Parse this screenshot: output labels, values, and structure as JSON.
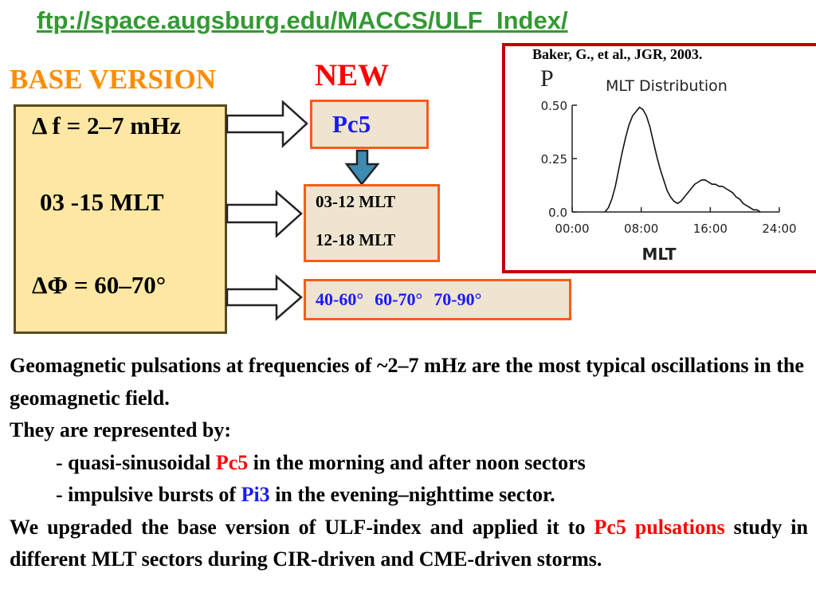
{
  "header": {
    "url": "ftp://space.augsburg.edu/MACCS/ULF_Index/",
    "base_title": "BASE VERSION",
    "new_title": "NEW"
  },
  "base_box": {
    "line1": "Δ f = 2–7 mHz",
    "line2": "03 -15 MLT",
    "line3": "ΔΦ = 60–70°"
  },
  "new_boxes": {
    "pc5": "Pc5",
    "mlt_line1": "03-12 MLT",
    "mlt_line2": "12-18 MLT",
    "lat1": "40-60°",
    "lat2": "60-70°",
    "lat3": "70-90°"
  },
  "figure": {
    "citation": "Baker, G., et al., JGR, 2003.",
    "panel_letter": "P",
    "title": "MLT Distribution",
    "xlabel": "MLT",
    "y_ticks": [
      "0.50",
      "0.25",
      "0.0"
    ],
    "x_ticks": [
      "00:00",
      "08:00",
      "16:00",
      "24:00"
    ]
  },
  "chart_data": {
    "type": "line",
    "title": "MLT Distribution",
    "xlabel": "MLT",
    "ylabel": "",
    "xlim": [
      0,
      24
    ],
    "ylim": [
      0,
      0.5
    ],
    "x_tick_labels": [
      "00:00",
      "08:00",
      "16:00",
      "24:00"
    ],
    "y_tick_labels": [
      "0.50",
      "0.25",
      "0.0"
    ],
    "series": [
      {
        "x": [
          3.8,
          4.2,
          4.6,
          5.0,
          5.4,
          5.8,
          6.2,
          6.6,
          7.0,
          7.4,
          7.8,
          8.2,
          8.6,
          9.0,
          9.4,
          9.8,
          10.2,
          10.6,
          11.0,
          11.4,
          11.8,
          12.2,
          12.6,
          13.0,
          13.4,
          13.8,
          14.2,
          14.6,
          15.0,
          15.4,
          15.8,
          16.2,
          16.6,
          17.0,
          17.4,
          17.8,
          18.2,
          18.6,
          19.0,
          19.4,
          19.8,
          20.2,
          20.6,
          21.0,
          21.4,
          21.8
        ],
        "y": [
          0.0,
          0.02,
          0.06,
          0.12,
          0.2,
          0.28,
          0.35,
          0.41,
          0.45,
          0.47,
          0.49,
          0.48,
          0.45,
          0.4,
          0.33,
          0.26,
          0.2,
          0.15,
          0.1,
          0.07,
          0.05,
          0.04,
          0.05,
          0.07,
          0.09,
          0.11,
          0.13,
          0.14,
          0.15,
          0.15,
          0.14,
          0.13,
          0.13,
          0.12,
          0.12,
          0.11,
          0.1,
          0.09,
          0.07,
          0.06,
          0.04,
          0.03,
          0.02,
          0.01,
          0.01,
          0.0
        ]
      }
    ]
  },
  "body": {
    "p1": "Geomagnetic pulsations at frequencies of ~2–7 mHz are the most typical oscillations in the geomagnetic field.",
    "p2": "They are represented by:",
    "p3_a": "- quasi-sinusoidal ",
    "p3_b": "Pc5",
    "p3_c": " in the morning and after noon sectors",
    "p4_a": "- impulsive bursts of ",
    "p4_b": "Pi3",
    "p4_c": " in the evening–nighttime sector.",
    "p5_a": " We upgraded the base version of ULF-index and applied it to ",
    "p5_b": "Pc5 pulsations",
    "p5_c": " study in different MLT sectors during CIR-driven and CME-driven storms."
  },
  "colors": {
    "url_green": "#339933",
    "base_orange": "#ff8c00",
    "new_red": "#ff0000",
    "box_border": "#ff5a1a",
    "label_blue": "#1a1aff",
    "frame_red": "#c00000"
  }
}
